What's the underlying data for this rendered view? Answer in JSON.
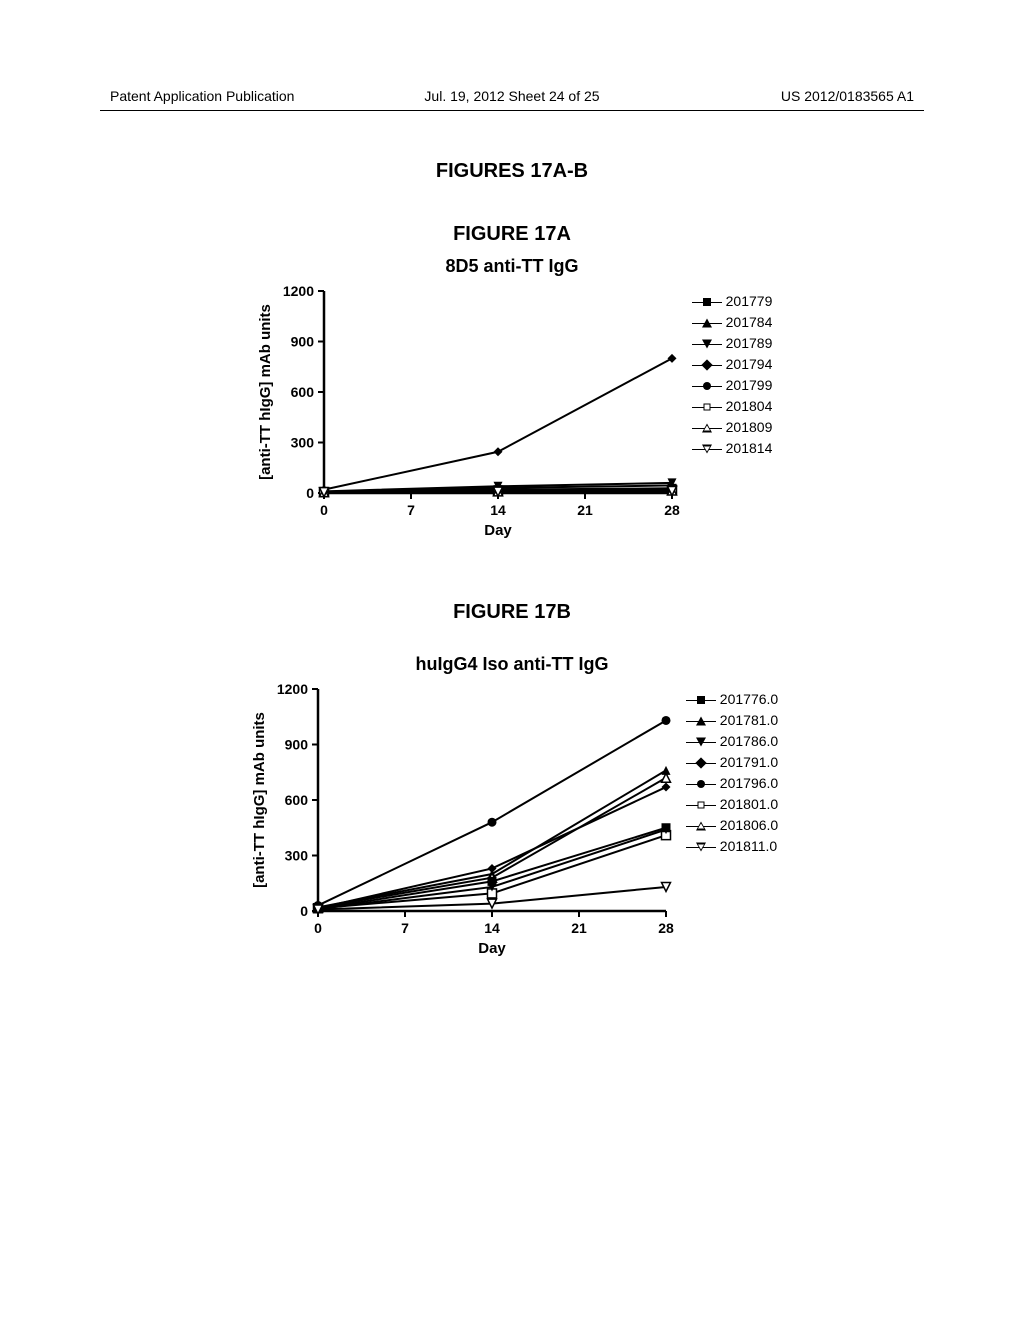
{
  "header": {
    "left": "Patent Application Publication",
    "center": "Jul. 19, 2012  Sheet 24 of 25",
    "right": "US 2012/0183565 A1"
  },
  "figures_heading": "FIGURES 17A-B",
  "figA": {
    "label": "FIGURE 17A",
    "title": "8D5 anti-TT IgG",
    "xlabel": "Day",
    "ylabel": "[anti-TT hIgG] mAb units",
    "xlim": [
      0,
      28
    ],
    "ylim": [
      0,
      1200
    ],
    "xticks": [
      0,
      7,
      14,
      21,
      28
    ],
    "yticks": [
      0,
      300,
      600,
      900,
      1200
    ],
    "plot_bg": "#ffffff",
    "axis_color": "#000000",
    "line_width": 2,
    "legend": [
      {
        "label": "201779",
        "marker": "sq-fill"
      },
      {
        "label": "201784",
        "marker": "tri-up-f"
      },
      {
        "label": "201789",
        "marker": "tri-dn-f"
      },
      {
        "label": "201794",
        "marker": "dia-f"
      },
      {
        "label": "201799",
        "marker": "ci-fill"
      },
      {
        "label": "201804",
        "marker": "sq-open"
      },
      {
        "label": "201809",
        "marker": "tri-up-o"
      },
      {
        "label": "201814",
        "marker": "tri-dn-o"
      }
    ],
    "series": [
      {
        "marker": "dia-f",
        "x": [
          0,
          14,
          28
        ],
        "y": [
          20,
          245,
          800
        ]
      },
      {
        "marker": "tri-dn-f",
        "x": [
          0,
          14,
          28
        ],
        "y": [
          10,
          40,
          60
        ]
      },
      {
        "marker": "tri-up-f",
        "x": [
          0,
          14,
          28
        ],
        "y": [
          8,
          30,
          45
        ]
      },
      {
        "marker": "sq-fill",
        "x": [
          0,
          14,
          28
        ],
        "y": [
          5,
          20,
          28
        ]
      },
      {
        "marker": "ci-fill",
        "x": [
          0,
          14,
          28
        ],
        "y": [
          5,
          15,
          22
        ]
      },
      {
        "marker": "sq-open",
        "x": [
          0,
          14,
          28
        ],
        "y": [
          5,
          12,
          18
        ]
      },
      {
        "marker": "tri-up-o",
        "x": [
          0,
          14,
          28
        ],
        "y": [
          5,
          10,
          15
        ]
      },
      {
        "marker": "tri-dn-o",
        "x": [
          0,
          14,
          28
        ],
        "y": [
          5,
          8,
          12
        ]
      }
    ]
  },
  "figB": {
    "label": "FIGURE 17B",
    "title": "huIgG4 Iso anti-TT IgG",
    "xlabel": "Day",
    "ylabel": "[anti-TT hIgG] mAb units",
    "xlim": [
      0,
      28
    ],
    "ylim": [
      0,
      1200
    ],
    "xticks": [
      0,
      7,
      14,
      21,
      28
    ],
    "yticks": [
      0,
      300,
      600,
      900,
      1200
    ],
    "plot_bg": "#ffffff",
    "axis_color": "#000000",
    "line_width": 2,
    "legend": [
      {
        "label": "201776.0",
        "marker": "sq-fill"
      },
      {
        "label": "201781.0",
        "marker": "tri-up-f"
      },
      {
        "label": "201786.0",
        "marker": "tri-dn-f"
      },
      {
        "label": "201791.0",
        "marker": "dia-f"
      },
      {
        "label": "201796.0",
        "marker": "ci-fill"
      },
      {
        "label": "201801.0",
        "marker": "sq-open"
      },
      {
        "label": "201806.0",
        "marker": "tri-up-o"
      },
      {
        "label": "201811.0",
        "marker": "tri-dn-o"
      }
    ],
    "series": [
      {
        "marker": "ci-fill",
        "x": [
          0,
          14,
          28
        ],
        "y": [
          30,
          480,
          1030
        ]
      },
      {
        "marker": "tri-up-f",
        "x": [
          0,
          14,
          28
        ],
        "y": [
          20,
          200,
          760
        ]
      },
      {
        "marker": "tri-up-o",
        "x": [
          0,
          14,
          28
        ],
        "y": [
          18,
          180,
          720
        ]
      },
      {
        "marker": "dia-f",
        "x": [
          0,
          14,
          28
        ],
        "y": [
          15,
          230,
          670
        ]
      },
      {
        "marker": "sq-open",
        "x": [
          0,
          14,
          28
        ],
        "y": [
          15,
          95,
          410
        ]
      },
      {
        "marker": "sq-fill",
        "x": [
          0,
          14,
          28
        ],
        "y": [
          12,
          160,
          450
        ]
      },
      {
        "marker": "tri-dn-f",
        "x": [
          0,
          14,
          28
        ],
        "y": [
          10,
          130,
          440
        ]
      },
      {
        "marker": "tri-dn-o",
        "x": [
          0,
          14,
          28
        ],
        "y": [
          8,
          40,
          130
        ]
      }
    ]
  }
}
